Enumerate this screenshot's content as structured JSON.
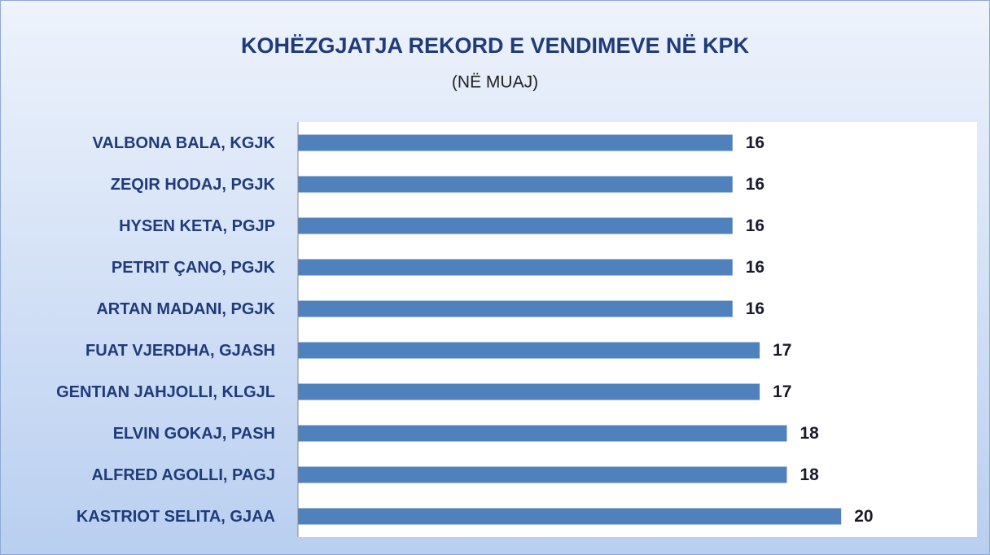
{
  "chart_data": {
    "type": "barh",
    "title": "KOHËZGJATJA REKORD E VENDIMEVE NË KPK",
    "subtitle": "(NË MUAJ)",
    "categories": [
      "VALBONA BALA, KGJK",
      "ZEQIR HODAJ, PGJK",
      "HYSEN KETA, PGJP",
      "PETRIT ÇANO, PGJK",
      "ARTAN MADANI, PGJK",
      "FUAT VJERDHA, GJASH",
      "GENTIAN JAHJOLLI, KLGJL",
      "ELVIN GOKAJ, PASH",
      "ALFRED AGOLLI, PAGJ",
      "KASTRIOT SELITA, GJAA"
    ],
    "values": [
      16,
      16,
      16,
      16,
      16,
      17,
      17,
      18,
      18,
      20
    ],
    "color": "#4f81bd",
    "xlim": [
      0,
      25
    ]
  }
}
